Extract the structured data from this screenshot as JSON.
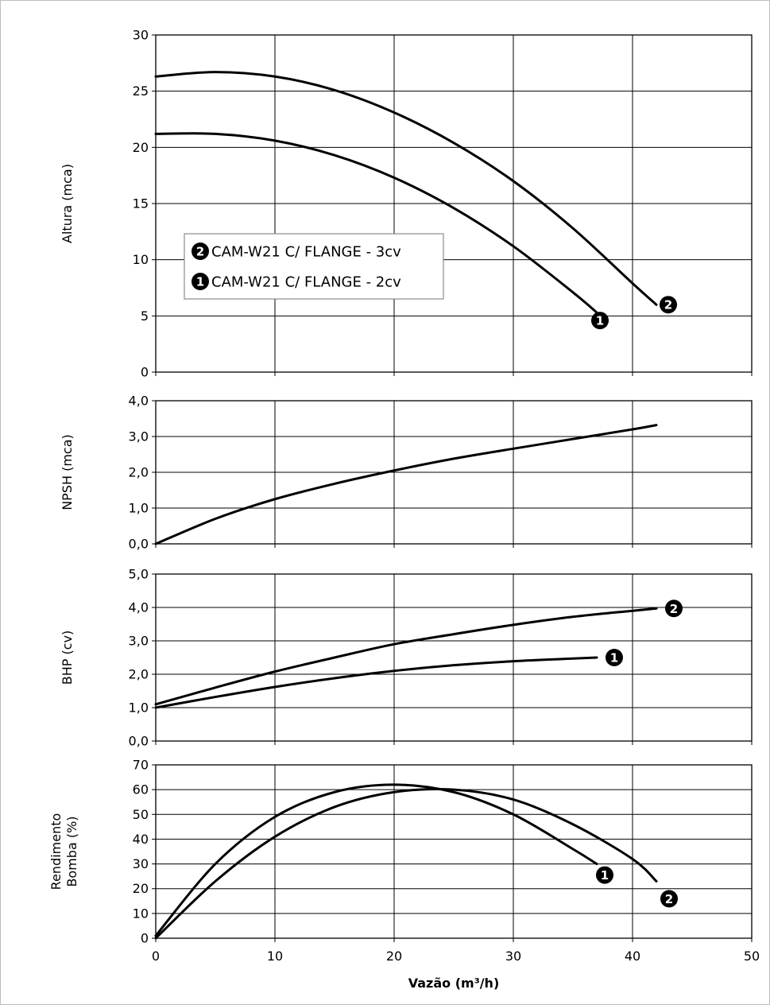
{
  "chart_data": [
    {
      "type": "line",
      "ylabel": "Altura (mca)",
      "xlim": [
        0,
        50
      ],
      "ylim": [
        0,
        30
      ],
      "yticks": [
        0,
        5,
        10,
        15,
        20,
        25,
        30
      ],
      "grid": true,
      "legend_position": "middle-left",
      "legend": [
        {
          "marker": "2",
          "label": "CAM-W21 C/ FLANGE - 3cv"
        },
        {
          "marker": "1",
          "label": "CAM-W21 C/ FLANGE - 2cv"
        }
      ],
      "series": [
        {
          "name": "CAM-W21 C/ FLANGE - 2cv",
          "marker": "1",
          "x": [
            0,
            5,
            10,
            15,
            20,
            25,
            30,
            35,
            37
          ],
          "y": [
            21.2,
            21.2,
            20.6,
            19.3,
            17.3,
            14.6,
            11.2,
            7.1,
            5.3
          ]
        },
        {
          "name": "CAM-W21 C/ FLANGE - 3cv",
          "marker": "2",
          "x": [
            0,
            5,
            10,
            15,
            20,
            25,
            30,
            35,
            40,
            42
          ],
          "y": [
            26.3,
            26.7,
            26.3,
            25.1,
            23.1,
            20.4,
            17.0,
            12.8,
            7.9,
            6.0
          ]
        }
      ]
    },
    {
      "type": "line",
      "ylabel": "NPSH (mca)",
      "xlim": [
        0,
        50
      ],
      "ylim": [
        0,
        4
      ],
      "yticks": [
        "0,0",
        "1,0",
        "2,0",
        "3,0",
        "4,0"
      ],
      "grid": true,
      "series": [
        {
          "x": [
            0,
            5,
            10,
            15,
            20,
            25,
            30,
            35,
            40,
            42
          ],
          "y": [
            0.0,
            0.7,
            1.25,
            1.68,
            2.05,
            2.38,
            2.66,
            2.93,
            3.2,
            3.32
          ]
        }
      ]
    },
    {
      "type": "line",
      "ylabel": "BHP (cv)",
      "xlim": [
        0,
        50
      ],
      "ylim": [
        0,
        5
      ],
      "yticks": [
        "0,0",
        "1,0",
        "2,0",
        "3,0",
        "4,0",
        "5,0"
      ],
      "grid": true,
      "series": [
        {
          "name": "CAM-W21 C/ FLANGE - 2cv",
          "marker": "1",
          "x": [
            0,
            5,
            10,
            15,
            20,
            25,
            30,
            35,
            37
          ],
          "y": [
            1.0,
            1.32,
            1.62,
            1.88,
            2.1,
            2.27,
            2.39,
            2.47,
            2.5
          ]
        },
        {
          "name": "CAM-W21 C/ FLANGE - 3cv",
          "marker": "2",
          "x": [
            0,
            5,
            10,
            15,
            20,
            25,
            30,
            35,
            40,
            42
          ],
          "y": [
            1.1,
            1.6,
            2.08,
            2.5,
            2.9,
            3.2,
            3.48,
            3.72,
            3.9,
            3.97
          ]
        }
      ]
    },
    {
      "type": "line",
      "ylabel": "Rendimento Bomba (%)",
      "ylabel_lines": [
        "Rendimento",
        "Bomba (%)"
      ],
      "xlabel": "Vazão (m³/h)",
      "xlim": [
        0,
        50
      ],
      "ylim": [
        0,
        70
      ],
      "xticks": [
        0,
        10,
        20,
        30,
        40,
        50
      ],
      "yticks": [
        0,
        10,
        20,
        30,
        40,
        50,
        60,
        70
      ],
      "grid": true,
      "series": [
        {
          "name": "CAM-W21 C/ FLANGE - 2cv",
          "marker": "1",
          "x": [
            0,
            5,
            10,
            15,
            20,
            25,
            30,
            35,
            37
          ],
          "y": [
            1,
            30,
            49,
            59,
            62,
            59,
            50,
            36,
            30
          ]
        },
        {
          "name": "CAM-W21 C/ FLANGE - 3cv",
          "marker": "2",
          "x": [
            0,
            5,
            10,
            15,
            20,
            25,
            30,
            35,
            40,
            42
          ],
          "y": [
            0,
            23,
            41,
            53,
            59,
            60,
            56,
            46,
            32,
            23
          ]
        }
      ]
    }
  ]
}
